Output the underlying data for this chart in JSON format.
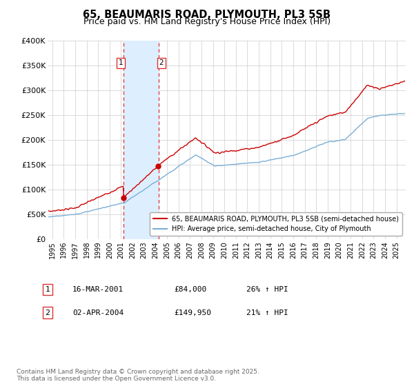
{
  "title": "65, BEAUMARIS ROAD, PLYMOUTH, PL3 5SB",
  "subtitle": "Price paid vs. HM Land Registry's House Price Index (HPI)",
  "red_line_label": "65, BEAUMARIS ROAD, PLYMOUTH, PL3 5SB (semi-detached house)",
  "blue_line_label": "HPI: Average price, semi-detached house, City of Plymouth",
  "footnote": "Contains HM Land Registry data © Crown copyright and database right 2025.\nThis data is licensed under the Open Government Licence v3.0.",
  "transaction1_box": "1",
  "transaction1_date": "16-MAR-2001",
  "transaction1_price": "£84,000",
  "transaction1_hpi": "26% ↑ HPI",
  "transaction1_year": 2001.21,
  "transaction2_box": "2",
  "transaction2_date": "02-APR-2004",
  "transaction2_price": "£149,950",
  "transaction2_hpi": "21% ↑ HPI",
  "transaction2_year": 2004.25,
  "shade_x1": 2001.21,
  "shade_x2": 2004.25,
  "ylim": [
    0,
    400000
  ],
  "yticks": [
    0,
    50000,
    100000,
    150000,
    200000,
    250000,
    300000,
    350000,
    400000
  ],
  "ytick_labels": [
    "£0",
    "£50K",
    "£100K",
    "£150K",
    "£200K",
    "£250K",
    "£300K",
    "£350K",
    "£400K"
  ],
  "background_color": "#ffffff",
  "shade_color": "#ddeeff",
  "red_color": "#cc0000",
  "blue_color": "#7aaed6",
  "grid_color": "#cccccc",
  "dashed_red": "#dd3333",
  "label1_color": "#cc0000",
  "xmin": 1994.6,
  "xmax": 2025.8
}
